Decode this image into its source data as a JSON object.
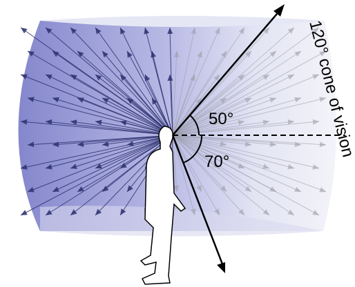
{
  "labels": {
    "upper_angle": "50°",
    "lower_angle": "70°",
    "cone": "120° cone of vision"
  }
}
